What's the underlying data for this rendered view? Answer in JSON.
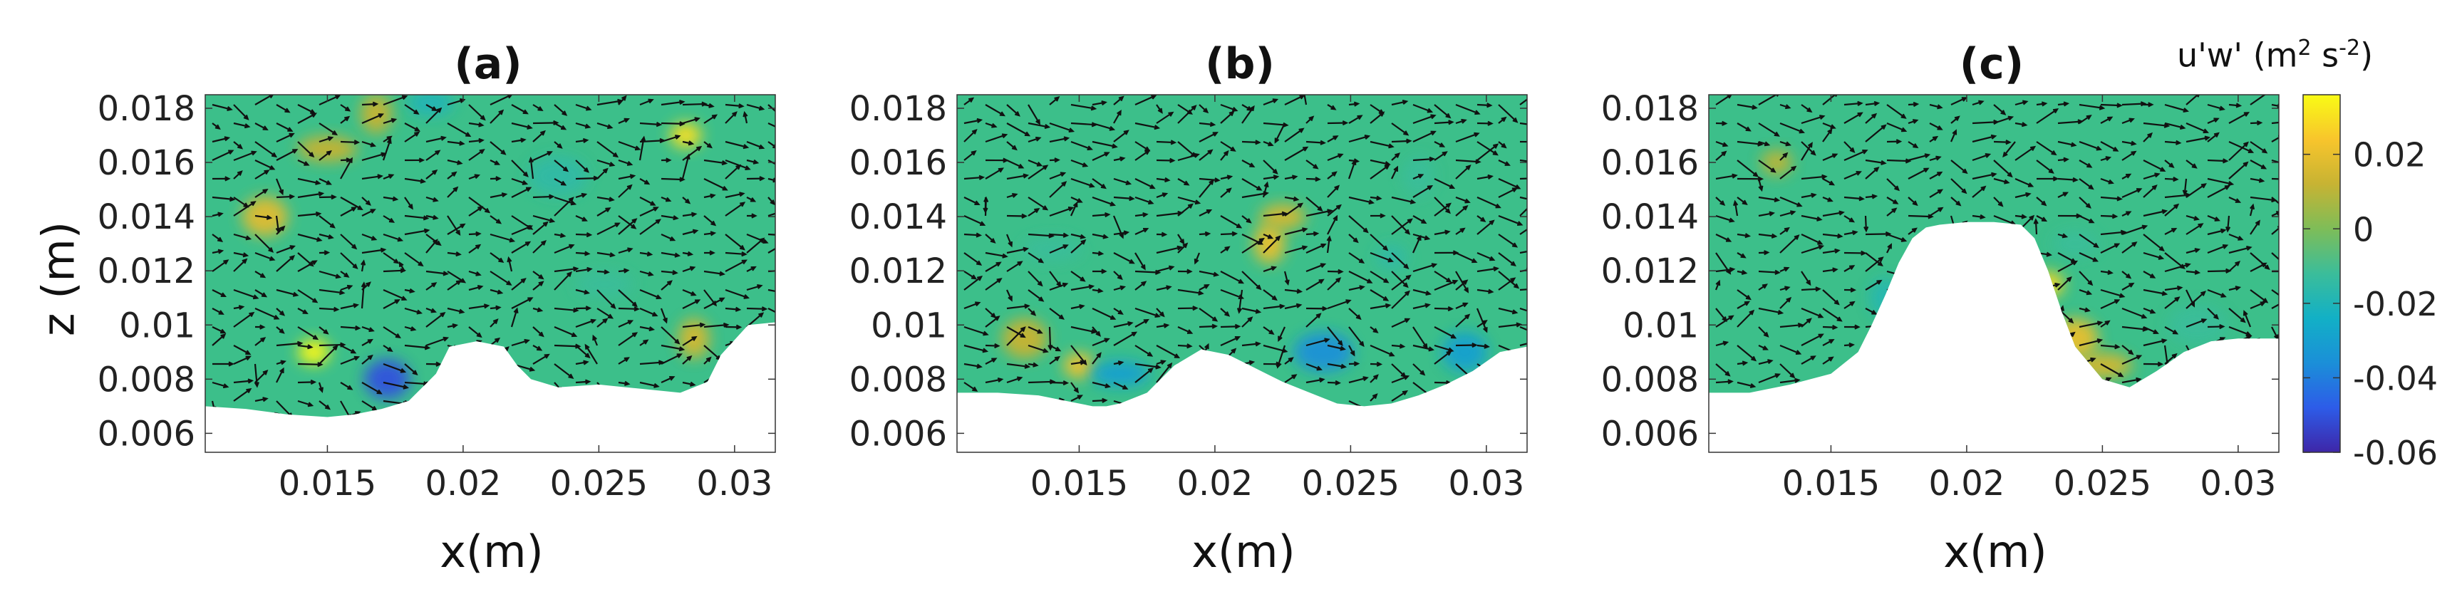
{
  "figure": {
    "ylabel": "z (m)",
    "xlabel": "x(m)",
    "colorbar": {
      "title_prefix": "u'w' (m",
      "title_sup1": "2",
      "title_mid": " s",
      "title_sup2": "-2",
      "title_suffix": ")",
      "ticks": [
        "0.02",
        "0",
        "-0.02",
        "-0.04",
        "-0.06"
      ],
      "range": [
        -0.06,
        0.036
      ],
      "colormap": [
        "#3e26a8",
        "#2d5ce8",
        "#1b8fd8",
        "#12b0c6",
        "#3bbd9a",
        "#7ebd58",
        "#c7b333",
        "#f8c52c",
        "#f9fb15"
      ],
      "background_color": "#3cbf8a"
    }
  },
  "chart_data": [
    {
      "type": "heatmap",
      "title": "(a)",
      "xlabel": "x(m)",
      "ylabel": "z (m)",
      "xlim": [
        0.0105,
        0.0315
      ],
      "ylim": [
        0.0053,
        0.0185
      ],
      "xticks": [
        "0.015",
        "0.02",
        "0.025",
        "0.03"
      ],
      "yticks": [
        "0.018",
        "0.016",
        "0.014",
        "0.012",
        "0.01",
        "0.008",
        "0.006"
      ],
      "bed_profile": {
        "x": [
          0.0105,
          0.012,
          0.0135,
          0.015,
          0.016,
          0.017,
          0.018,
          0.019,
          0.0195,
          0.0205,
          0.0215,
          0.022,
          0.0225,
          0.0235,
          0.025,
          0.026,
          0.027,
          0.028,
          0.029,
          0.0295,
          0.0305,
          0.0315
        ],
        "z": [
          0.007,
          0.0069,
          0.0067,
          0.0066,
          0.0067,
          0.0069,
          0.0072,
          0.0082,
          0.0092,
          0.0094,
          0.0092,
          0.0085,
          0.008,
          0.0077,
          0.0078,
          0.0077,
          0.0076,
          0.0075,
          0.0079,
          0.0089,
          0.01,
          0.0101
        ]
      },
      "features": [
        {
          "x": 0.0145,
          "z": 0.009,
          "value": 0.035
        },
        {
          "x": 0.0127,
          "z": 0.014,
          "value": 0.018
        },
        {
          "x": 0.015,
          "z": 0.0165,
          "value": 0.012
        },
        {
          "x": 0.0168,
          "z": 0.0178,
          "value": 0.012
        },
        {
          "x": 0.0188,
          "z": 0.0182,
          "value": -0.02
        },
        {
          "x": 0.0235,
          "z": 0.0155,
          "value": -0.015
        },
        {
          "x": 0.0282,
          "z": 0.017,
          "value": 0.03
        },
        {
          "x": 0.0172,
          "z": 0.008,
          "value": -0.05
        },
        {
          "x": 0.0252,
          "z": 0.0115,
          "value": -0.012
        },
        {
          "x": 0.0285,
          "z": 0.0095,
          "value": 0.015
        }
      ]
    },
    {
      "type": "heatmap",
      "title": "(b)",
      "xlabel": "x(m)",
      "ylabel": "",
      "xlim": [
        0.0105,
        0.0315
      ],
      "ylim": [
        0.0053,
        0.0185
      ],
      "xticks": [
        "0.015",
        "0.02",
        "0.025",
        "0.03"
      ],
      "yticks": [
        "0.018",
        "0.016",
        "0.014",
        "0.012",
        "0.01",
        "0.008",
        "0.006"
      ],
      "bed_profile": {
        "x": [
          0.0105,
          0.012,
          0.0135,
          0.0145,
          0.0155,
          0.016,
          0.0165,
          0.0175,
          0.0185,
          0.0195,
          0.0205,
          0.0215,
          0.0225,
          0.0235,
          0.0245,
          0.0255,
          0.0265,
          0.0275,
          0.0285,
          0.0295,
          0.0305,
          0.0315
        ],
        "z": [
          0.0075,
          0.0075,
          0.0074,
          0.0072,
          0.007,
          0.007,
          0.0071,
          0.0075,
          0.0085,
          0.0091,
          0.0089,
          0.0084,
          0.0079,
          0.0075,
          0.0071,
          0.007,
          0.0071,
          0.0074,
          0.0078,
          0.0083,
          0.009,
          0.0092
        ]
      },
      "features": [
        {
          "x": 0.015,
          "z": 0.0085,
          "value": 0.022
        },
        {
          "x": 0.013,
          "z": 0.0095,
          "value": 0.012
        },
        {
          "x": 0.0165,
          "z": 0.0082,
          "value": -0.03
        },
        {
          "x": 0.022,
          "z": 0.013,
          "value": 0.02
        },
        {
          "x": 0.0225,
          "z": 0.014,
          "value": 0.015
        },
        {
          "x": 0.024,
          "z": 0.009,
          "value": -0.035
        },
        {
          "x": 0.0265,
          "z": 0.0125,
          "value": -0.015
        },
        {
          "x": 0.0292,
          "z": 0.009,
          "value": -0.03
        },
        {
          "x": 0.014,
          "z": 0.0128,
          "value": -0.012
        },
        {
          "x": 0.0275,
          "z": 0.0155,
          "value": -0.012
        }
      ]
    },
    {
      "type": "heatmap",
      "title": "(c)",
      "xlabel": "x(m)",
      "ylabel": "",
      "xlim": [
        0.0105,
        0.0315
      ],
      "ylim": [
        0.0053,
        0.0185
      ],
      "xticks": [
        "0.015",
        "0.02",
        "0.025",
        "0.03"
      ],
      "yticks": [
        "0.018",
        "0.016",
        "0.014",
        "0.012",
        "0.01",
        "0.008",
        "0.006"
      ],
      "bed_profile": {
        "x": [
          0.0105,
          0.012,
          0.0135,
          0.015,
          0.016,
          0.0165,
          0.017,
          0.0175,
          0.018,
          0.0185,
          0.019,
          0.02,
          0.021,
          0.022,
          0.0225,
          0.023,
          0.0235,
          0.024,
          0.025,
          0.026,
          0.027,
          0.028,
          0.029,
          0.03,
          0.0315
        ],
        "z": [
          0.0075,
          0.0075,
          0.0078,
          0.0082,
          0.009,
          0.01,
          0.0111,
          0.0123,
          0.0132,
          0.0136,
          0.0137,
          0.0138,
          0.0138,
          0.0137,
          0.0132,
          0.012,
          0.0105,
          0.0092,
          0.008,
          0.0077,
          0.0083,
          0.009,
          0.0094,
          0.0095,
          0.0095
        ]
      },
      "features": [
        {
          "x": 0.023,
          "z": 0.0115,
          "value": 0.028
        },
        {
          "x": 0.024,
          "z": 0.0095,
          "value": 0.02
        },
        {
          "x": 0.025,
          "z": 0.0085,
          "value": 0.015
        },
        {
          "x": 0.017,
          "z": 0.011,
          "value": -0.018
        },
        {
          "x": 0.024,
          "z": 0.013,
          "value": -0.012
        },
        {
          "x": 0.0285,
          "z": 0.01,
          "value": -0.012
        },
        {
          "x": 0.013,
          "z": 0.016,
          "value": 0.01
        }
      ]
    }
  ]
}
